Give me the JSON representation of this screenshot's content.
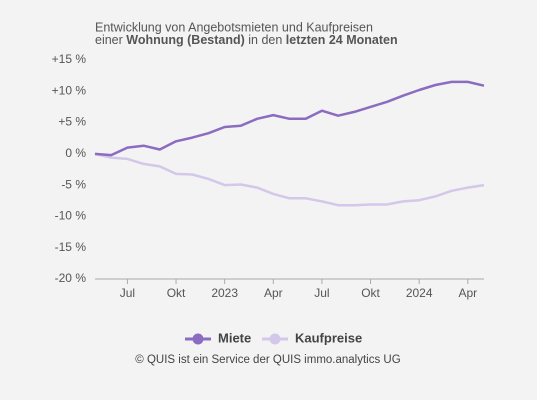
{
  "chart_data": {
    "type": "line",
    "title": {
      "line1": "Entwicklung von Angebotsmieten und Kaufpreisen",
      "line2": [
        {
          "text": "einer "
        },
        {
          "text": "Wohnung (Bestand)",
          "bold": true
        },
        {
          "text": " in den "
        },
        {
          "text": "letzten 24 Monaten",
          "bold": true
        }
      ]
    },
    "categories": [
      null,
      null,
      "Jul",
      null,
      null,
      "Okt",
      null,
      null,
      "2023",
      null,
      null,
      "Apr",
      null,
      null,
      "Jul",
      null,
      null,
      "Okt",
      null,
      null,
      "2024",
      null,
      null,
      "Apr",
      null
    ],
    "series": [
      {
        "name": "Miete",
        "color": "#8b6cc0",
        "values": [
          0,
          -0.2,
          1.0,
          1.3,
          0.7,
          2.0,
          2.6,
          3.3,
          4.3,
          4.5,
          5.6,
          6.2,
          5.6,
          5.6,
          6.9,
          6.1,
          6.7,
          7.5,
          8.3,
          9.3,
          10.2,
          11.0,
          11.5,
          11.5,
          10.9
        ]
      },
      {
        "name": "Kaufpreise",
        "color": "#d3c8ea",
        "values": [
          0,
          -0.6,
          -0.8,
          -1.6,
          -2.0,
          -3.2,
          -3.3,
          -4.0,
          -5.0,
          -4.9,
          -5.4,
          -6.4,
          -7.1,
          -7.1,
          -7.6,
          -8.2,
          -8.2,
          -8.1,
          -8.1,
          -7.6,
          -7.4,
          -6.8,
          -5.9,
          -5.4,
          -5.0
        ]
      }
    ],
    "ylim": [
      -20,
      15
    ],
    "yticks": [
      {
        "value": 15,
        "label": "+15 %"
      },
      {
        "value": 10,
        "label": "+10 %"
      },
      {
        "value": 5,
        "label": "+5 %"
      },
      {
        "value": 0,
        "label": "0 %"
      },
      {
        "value": -5,
        "label": "-5 %"
      },
      {
        "value": -10,
        "label": "-10 %"
      },
      {
        "value": -15,
        "label": "-15 %"
      },
      {
        "value": -20,
        "label": "-20 %"
      }
    ],
    "grid": false,
    "legend": "bottom",
    "source": "© QUIS ist ein Service der QUIS immo.analytics UG"
  }
}
